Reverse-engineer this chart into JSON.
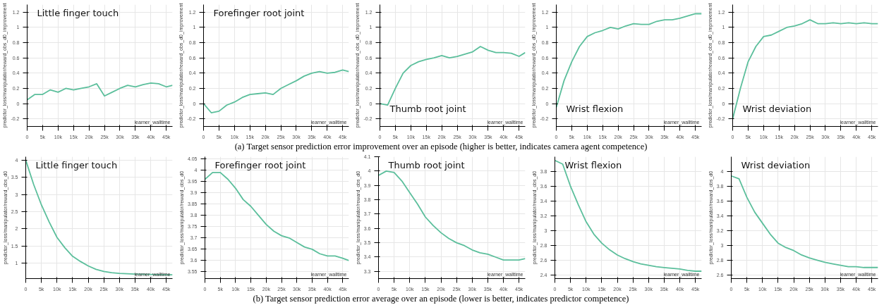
{
  "chart_data": [
    {
      "type": "line",
      "title": "Little finger touch",
      "xlabel": "learner_walltime",
      "ylabel": "predictor_loss/manipulator/reward_obs_d0_improvement",
      "annotations": [
        "(a)  Target sensor prediction error improvement over an episode (higher is better, indicates camera agent competence)"
      ],
      "x": [
        0,
        2500,
        5000,
        7500,
        10000,
        12500,
        15000,
        17500,
        20000,
        22500,
        25000,
        27500,
        30000,
        32500,
        35000,
        37500,
        40000,
        42500,
        45000,
        47000
      ],
      "series": [
        {
          "color": "#5cbf9c",
          "values": [
            0.05,
            0.12,
            0.12,
            0.18,
            0.15,
            0.2,
            0.18,
            0.2,
            0.22,
            0.26,
            0.1,
            0.15,
            0.2,
            0.24,
            0.22,
            0.25,
            0.27,
            0.26,
            0.22,
            0.24
          ]
        }
      ],
      "xlim": [
        0,
        47000
      ],
      "ylim": [
        -0.3,
        1.3
      ],
      "xticks": [
        0,
        {
          "value": 5000,
          "label": "5k"
        },
        {
          "value": 10000,
          "label": "10k"
        },
        {
          "value": 15000,
          "label": "15k"
        },
        {
          "value": 20000,
          "label": "20k"
        },
        {
          "value": 25000,
          "label": "25k"
        },
        {
          "value": 30000,
          "label": "30k"
        },
        {
          "value": 35000,
          "label": "35k"
        },
        {
          "value": 40000,
          "label": "40k"
        },
        {
          "value": 45000,
          "label": "45k"
        }
      ],
      "yticks": [
        -0.2,
        0,
        0.2,
        0.4,
        0.6,
        0.8,
        1,
        1.2
      ],
      "grid": true
    },
    {
      "type": "line",
      "title": "Forefinger root joint",
      "xlabel": "learner_walltime",
      "ylabel": "predictor_loss/manipulator/reward_obs_d0_improvement",
      "x": [
        0,
        2500,
        5000,
        7500,
        10000,
        12500,
        15000,
        17500,
        20000,
        22500,
        25000,
        27500,
        30000,
        32500,
        35000,
        37500,
        40000,
        42500,
        45000,
        47000
      ],
      "series": [
        {
          "color": "#5cbf9c",
          "values": [
            0,
            -0.12,
            -0.1,
            -0.02,
            0.02,
            0.08,
            0.12,
            0.13,
            0.14,
            0.12,
            0.2,
            0.25,
            0.3,
            0.36,
            0.4,
            0.42,
            0.4,
            0.41,
            0.44,
            0.42
          ]
        }
      ],
      "xlim": [
        0,
        47000
      ],
      "ylim": [
        -0.3,
        1.3
      ],
      "xticks": [
        0,
        {
          "value": 5000,
          "label": "5k"
        },
        {
          "value": 10000,
          "label": "10k"
        },
        {
          "value": 15000,
          "label": "15k"
        },
        {
          "value": 20000,
          "label": "20k"
        },
        {
          "value": 25000,
          "label": "25k"
        },
        {
          "value": 30000,
          "label": "30k"
        },
        {
          "value": 35000,
          "label": "35k"
        },
        {
          "value": 40000,
          "label": "40k"
        },
        {
          "value": 45000,
          "label": "45k"
        }
      ],
      "yticks": [
        -0.2,
        0,
        0.2,
        0.4,
        0.6,
        0.8,
        1,
        1.2
      ],
      "grid": true
    },
    {
      "type": "line",
      "title": "Thumb root joint",
      "xlabel": "learner_walltime",
      "ylabel": "predictor_loss/manipulator/reward_obs_d0_improvement",
      "x": [
        0,
        2500,
        5000,
        7500,
        10000,
        12500,
        15000,
        17500,
        20000,
        22500,
        25000,
        27500,
        30000,
        32500,
        35000,
        37500,
        40000,
        42500,
        45000,
        47000
      ],
      "series": [
        {
          "color": "#5cbf9c",
          "values": [
            0,
            -0.02,
            0.2,
            0.4,
            0.5,
            0.55,
            0.58,
            0.6,
            0.63,
            0.6,
            0.62,
            0.65,
            0.68,
            0.75,
            0.7,
            0.67,
            0.67,
            0.66,
            0.62,
            0.67
          ]
        }
      ],
      "xlim": [
        0,
        47000
      ],
      "ylim": [
        -0.3,
        1.3
      ],
      "xticks": [
        0,
        {
          "value": 5000,
          "label": "5k"
        },
        {
          "value": 10000,
          "label": "10k"
        },
        {
          "value": 15000,
          "label": "15k"
        },
        {
          "value": 20000,
          "label": "20k"
        },
        {
          "value": 25000,
          "label": "25k"
        },
        {
          "value": 30000,
          "label": "30k"
        },
        {
          "value": 35000,
          "label": "35k"
        },
        {
          "value": 40000,
          "label": "40k"
        },
        {
          "value": 45000,
          "label": "45k"
        }
      ],
      "yticks": [
        -0.2,
        0,
        0.2,
        0.4,
        0.6,
        0.8,
        1,
        1.2
      ],
      "grid": true
    },
    {
      "type": "line",
      "title": "Wrist flexion",
      "xlabel": "learner_walltime",
      "ylabel": "predictor_loss/manipulator/reward_obs_d0_improvement",
      "x": [
        0,
        2500,
        5000,
        7500,
        10000,
        12500,
        15000,
        17500,
        20000,
        22500,
        25000,
        27500,
        30000,
        32500,
        35000,
        37500,
        40000,
        42500,
        45000,
        47000
      ],
      "series": [
        {
          "color": "#5cbf9c",
          "values": [
            -0.05,
            0.3,
            0.55,
            0.75,
            0.88,
            0.93,
            0.96,
            1.0,
            0.98,
            1.02,
            1.05,
            1.04,
            1.04,
            1.08,
            1.1,
            1.1,
            1.12,
            1.15,
            1.18,
            1.18
          ]
        }
      ],
      "xlim": [
        0,
        47000
      ],
      "ylim": [
        -0.3,
        1.3
      ],
      "xticks": [
        0,
        {
          "value": 5000,
          "label": "5k"
        },
        {
          "value": 10000,
          "label": "10k"
        },
        {
          "value": 15000,
          "label": "15k"
        },
        {
          "value": 20000,
          "label": "20k"
        },
        {
          "value": 25000,
          "label": "25k"
        },
        {
          "value": 30000,
          "label": "30k"
        },
        {
          "value": 35000,
          "label": "35k"
        },
        {
          "value": 40000,
          "label": "40k"
        },
        {
          "value": 45000,
          "label": "45k"
        }
      ],
      "yticks": [
        -0.2,
        0,
        0.2,
        0.4,
        0.6,
        0.8,
        1,
        1.2
      ],
      "grid": true
    },
    {
      "type": "line",
      "title": "Wrist deviation",
      "xlabel": "learner_walltime",
      "ylabel": "predictor_loss/manipulator/reward_obs_d0_improvement",
      "x": [
        0,
        2500,
        5000,
        7500,
        10000,
        12500,
        15000,
        17500,
        20000,
        22500,
        25000,
        27500,
        30000,
        32500,
        35000,
        37500,
        40000,
        42500,
        45000,
        47000
      ],
      "series": [
        {
          "color": "#5cbf9c",
          "values": [
            -0.2,
            0.2,
            0.55,
            0.75,
            0.88,
            0.9,
            0.95,
            1.0,
            1.02,
            1.05,
            1.1,
            1.05,
            1.05,
            1.06,
            1.05,
            1.06,
            1.05,
            1.06,
            1.05,
            1.05
          ]
        }
      ],
      "xlim": [
        0,
        47000
      ],
      "ylim": [
        -0.3,
        1.3
      ],
      "xticks": [
        0,
        {
          "value": 5000,
          "label": "5k"
        },
        {
          "value": 10000,
          "label": "10k"
        },
        {
          "value": 15000,
          "label": "15k"
        },
        {
          "value": 20000,
          "label": "20k"
        },
        {
          "value": 25000,
          "label": "25k"
        },
        {
          "value": 30000,
          "label": "30k"
        },
        {
          "value": 35000,
          "label": "35k"
        },
        {
          "value": 40000,
          "label": "40k"
        },
        {
          "value": 45000,
          "label": "45k"
        }
      ],
      "yticks": [
        -0.2,
        0,
        0.2,
        0.4,
        0.6,
        0.8,
        1,
        1.2
      ],
      "grid": true
    },
    {
      "type": "line",
      "title": "Little finger touch",
      "xlabel": "learner_walltime",
      "ylabel": "predictor_loss/manipulator/reward_obs_d0",
      "annotations": [
        "(b)  Target sensor prediction error average over an episode (lower is better, indicates predictor competence)"
      ],
      "x": [
        0,
        2500,
        5000,
        7500,
        10000,
        12500,
        15000,
        17500,
        20000,
        22500,
        25000,
        27500,
        30000,
        35000,
        40000,
        45000,
        47000
      ],
      "series": [
        {
          "color": "#5cbf9c",
          "values": [
            4.0,
            3.3,
            2.7,
            2.2,
            1.75,
            1.45,
            1.2,
            1.05,
            0.92,
            0.82,
            0.76,
            0.72,
            0.7,
            0.68,
            0.67,
            0.66,
            0.66
          ]
        }
      ],
      "xlim": [
        0,
        47000
      ],
      "ylim": [
        0.55,
        4.1
      ],
      "xticks": [
        0,
        {
          "value": 5000,
          "label": "5k"
        },
        {
          "value": 10000,
          "label": "10k"
        },
        {
          "value": 15000,
          "label": "15k"
        },
        {
          "value": 20000,
          "label": "20k"
        },
        {
          "value": 25000,
          "label": "25k"
        },
        {
          "value": 30000,
          "label": "30k"
        },
        {
          "value": 35000,
          "label": "35k"
        },
        {
          "value": 40000,
          "label": "40k"
        },
        {
          "value": 45000,
          "label": "45k"
        }
      ],
      "yticks": [
        1,
        1.5,
        2,
        2.5,
        3,
        3.5,
        4
      ],
      "grid": true
    },
    {
      "type": "line",
      "title": "Forefinger root joint",
      "xlabel": "learner_walltime",
      "ylabel": "predictor_loss/manipulator/reward_obs_d0",
      "x": [
        0,
        2500,
        5000,
        7500,
        10000,
        12500,
        15000,
        17500,
        20000,
        22500,
        25000,
        27500,
        30000,
        32500,
        35000,
        37500,
        40000,
        42500,
        45000,
        47000
      ],
      "series": [
        {
          "color": "#5cbf9c",
          "values": [
            3.96,
            3.99,
            3.99,
            3.96,
            3.92,
            3.87,
            3.84,
            3.8,
            3.76,
            3.73,
            3.71,
            3.7,
            3.68,
            3.66,
            3.65,
            3.63,
            3.62,
            3.62,
            3.61,
            3.6
          ]
        }
      ],
      "xlim": [
        0,
        47000
      ],
      "ylim": [
        3.52,
        4.06
      ],
      "xticks": [
        0,
        {
          "value": 5000,
          "label": "5k"
        },
        {
          "value": 10000,
          "label": "10k"
        },
        {
          "value": 15000,
          "label": "15k"
        },
        {
          "value": 20000,
          "label": "20k"
        },
        {
          "value": 25000,
          "label": "25k"
        },
        {
          "value": 30000,
          "label": "30k"
        },
        {
          "value": 35000,
          "label": "35k"
        },
        {
          "value": 40000,
          "label": "40k"
        },
        {
          "value": 45000,
          "label": "45k"
        }
      ],
      "yticks": [
        3.55,
        3.6,
        3.65,
        3.7,
        3.75,
        3.8,
        3.85,
        3.9,
        3.95,
        4,
        4.05
      ],
      "grid": true
    },
    {
      "type": "line",
      "title": "Thumb root joint",
      "xlabel": "learner_walltime",
      "ylabel": "predictor_loss/manipulator/reward_obs_d0",
      "x": [
        0,
        2500,
        5000,
        7500,
        10000,
        12500,
        15000,
        17500,
        20000,
        22500,
        25000,
        27500,
        30000,
        32500,
        35000,
        37500,
        40000,
        42500,
        45000,
        47000
      ],
      "series": [
        {
          "color": "#5cbf9c",
          "values": [
            3.97,
            4.0,
            3.99,
            3.93,
            3.85,
            3.77,
            3.68,
            3.62,
            3.57,
            3.53,
            3.5,
            3.48,
            3.45,
            3.43,
            3.42,
            3.4,
            3.38,
            3.38,
            3.38,
            3.39
          ]
        }
      ],
      "xlim": [
        0,
        47000
      ],
      "ylim": [
        3.25,
        4.1
      ],
      "xticks": [
        0,
        {
          "value": 5000,
          "label": "5k"
        },
        {
          "value": 10000,
          "label": "10k"
        },
        {
          "value": 15000,
          "label": "15k"
        },
        {
          "value": 20000,
          "label": "20k"
        },
        {
          "value": 25000,
          "label": "25k"
        },
        {
          "value": 30000,
          "label": "30k"
        },
        {
          "value": 35000,
          "label": "35k"
        },
        {
          "value": 40000,
          "label": "40k"
        },
        {
          "value": 45000,
          "label": "45k"
        }
      ],
      "yticks": [
        3.3,
        3.4,
        3.5,
        3.6,
        3.7,
        3.8,
        3.9,
        4,
        4.1
      ],
      "grid": true
    },
    {
      "type": "line",
      "title": "Wrist flexion",
      "xlabel": "learner_walltime",
      "ylabel": "predictor_loss/manipulator/reward_obs_d0",
      "x": [
        0,
        2500,
        5000,
        7500,
        10000,
        12500,
        15000,
        17500,
        20000,
        22500,
        25000,
        27500,
        30000,
        32500,
        35000,
        37500,
        40000,
        42500,
        45000,
        47000
      ],
      "series": [
        {
          "color": "#5cbf9c",
          "values": [
            3.95,
            3.9,
            3.6,
            3.35,
            3.12,
            2.95,
            2.83,
            2.74,
            2.67,
            2.62,
            2.58,
            2.55,
            2.53,
            2.51,
            2.5,
            2.49,
            2.48,
            2.46,
            2.45,
            2.45
          ]
        }
      ],
      "xlim": [
        0,
        47000
      ],
      "ylim": [
        2.35,
        4.0
      ],
      "xticks": [
        0,
        {
          "value": 5000,
          "label": "5k"
        },
        {
          "value": 10000,
          "label": "10k"
        },
        {
          "value": 15000,
          "label": "15k"
        },
        {
          "value": 20000,
          "label": "20k"
        },
        {
          "value": 25000,
          "label": "25k"
        },
        {
          "value": 30000,
          "label": "30k"
        },
        {
          "value": 35000,
          "label": "35k"
        },
        {
          "value": 40000,
          "label": "40k"
        },
        {
          "value": 45000,
          "label": "45k"
        }
      ],
      "yticks": [
        2.4,
        2.6,
        2.8,
        3,
        3.2,
        3.4,
        3.6,
        3.8
      ],
      "grid": true
    },
    {
      "type": "line",
      "title": "Wrist deviation",
      "xlabel": "learner_walltime",
      "ylabel": "predictor_loss/manipulator/reward_obs_d0",
      "x": [
        0,
        2500,
        5000,
        7500,
        10000,
        12500,
        15000,
        17500,
        20000,
        22500,
        25000,
        27500,
        30000,
        32500,
        35000,
        37500,
        40000,
        42500,
        45000,
        47000
      ],
      "series": [
        {
          "color": "#5cbf9c",
          "values": [
            3.94,
            3.9,
            3.65,
            3.45,
            3.3,
            3.15,
            3.03,
            2.97,
            2.93,
            2.87,
            2.83,
            2.8,
            2.77,
            2.75,
            2.73,
            2.71,
            2.71,
            2.7,
            2.7,
            2.7
          ]
        }
      ],
      "xlim": [
        0,
        47000
      ],
      "ylim": [
        2.55,
        4.2
      ],
      "xticks": [
        0,
        {
          "value": 5000,
          "label": "5k"
        },
        {
          "value": 10000,
          "label": "10k"
        },
        {
          "value": 15000,
          "label": "15k"
        },
        {
          "value": 20000,
          "label": "20k"
        },
        {
          "value": 25000,
          "label": "25k"
        },
        {
          "value": 30000,
          "label": "30k"
        },
        {
          "value": 35000,
          "label": "35k"
        },
        {
          "value": 40000,
          "label": "40k"
        },
        {
          "value": 45000,
          "label": "45k"
        }
      ],
      "yticks": [
        2.6,
        2.8,
        3,
        3.2,
        3.4,
        3.6,
        3.8,
        4
      ],
      "grid": true
    }
  ]
}
